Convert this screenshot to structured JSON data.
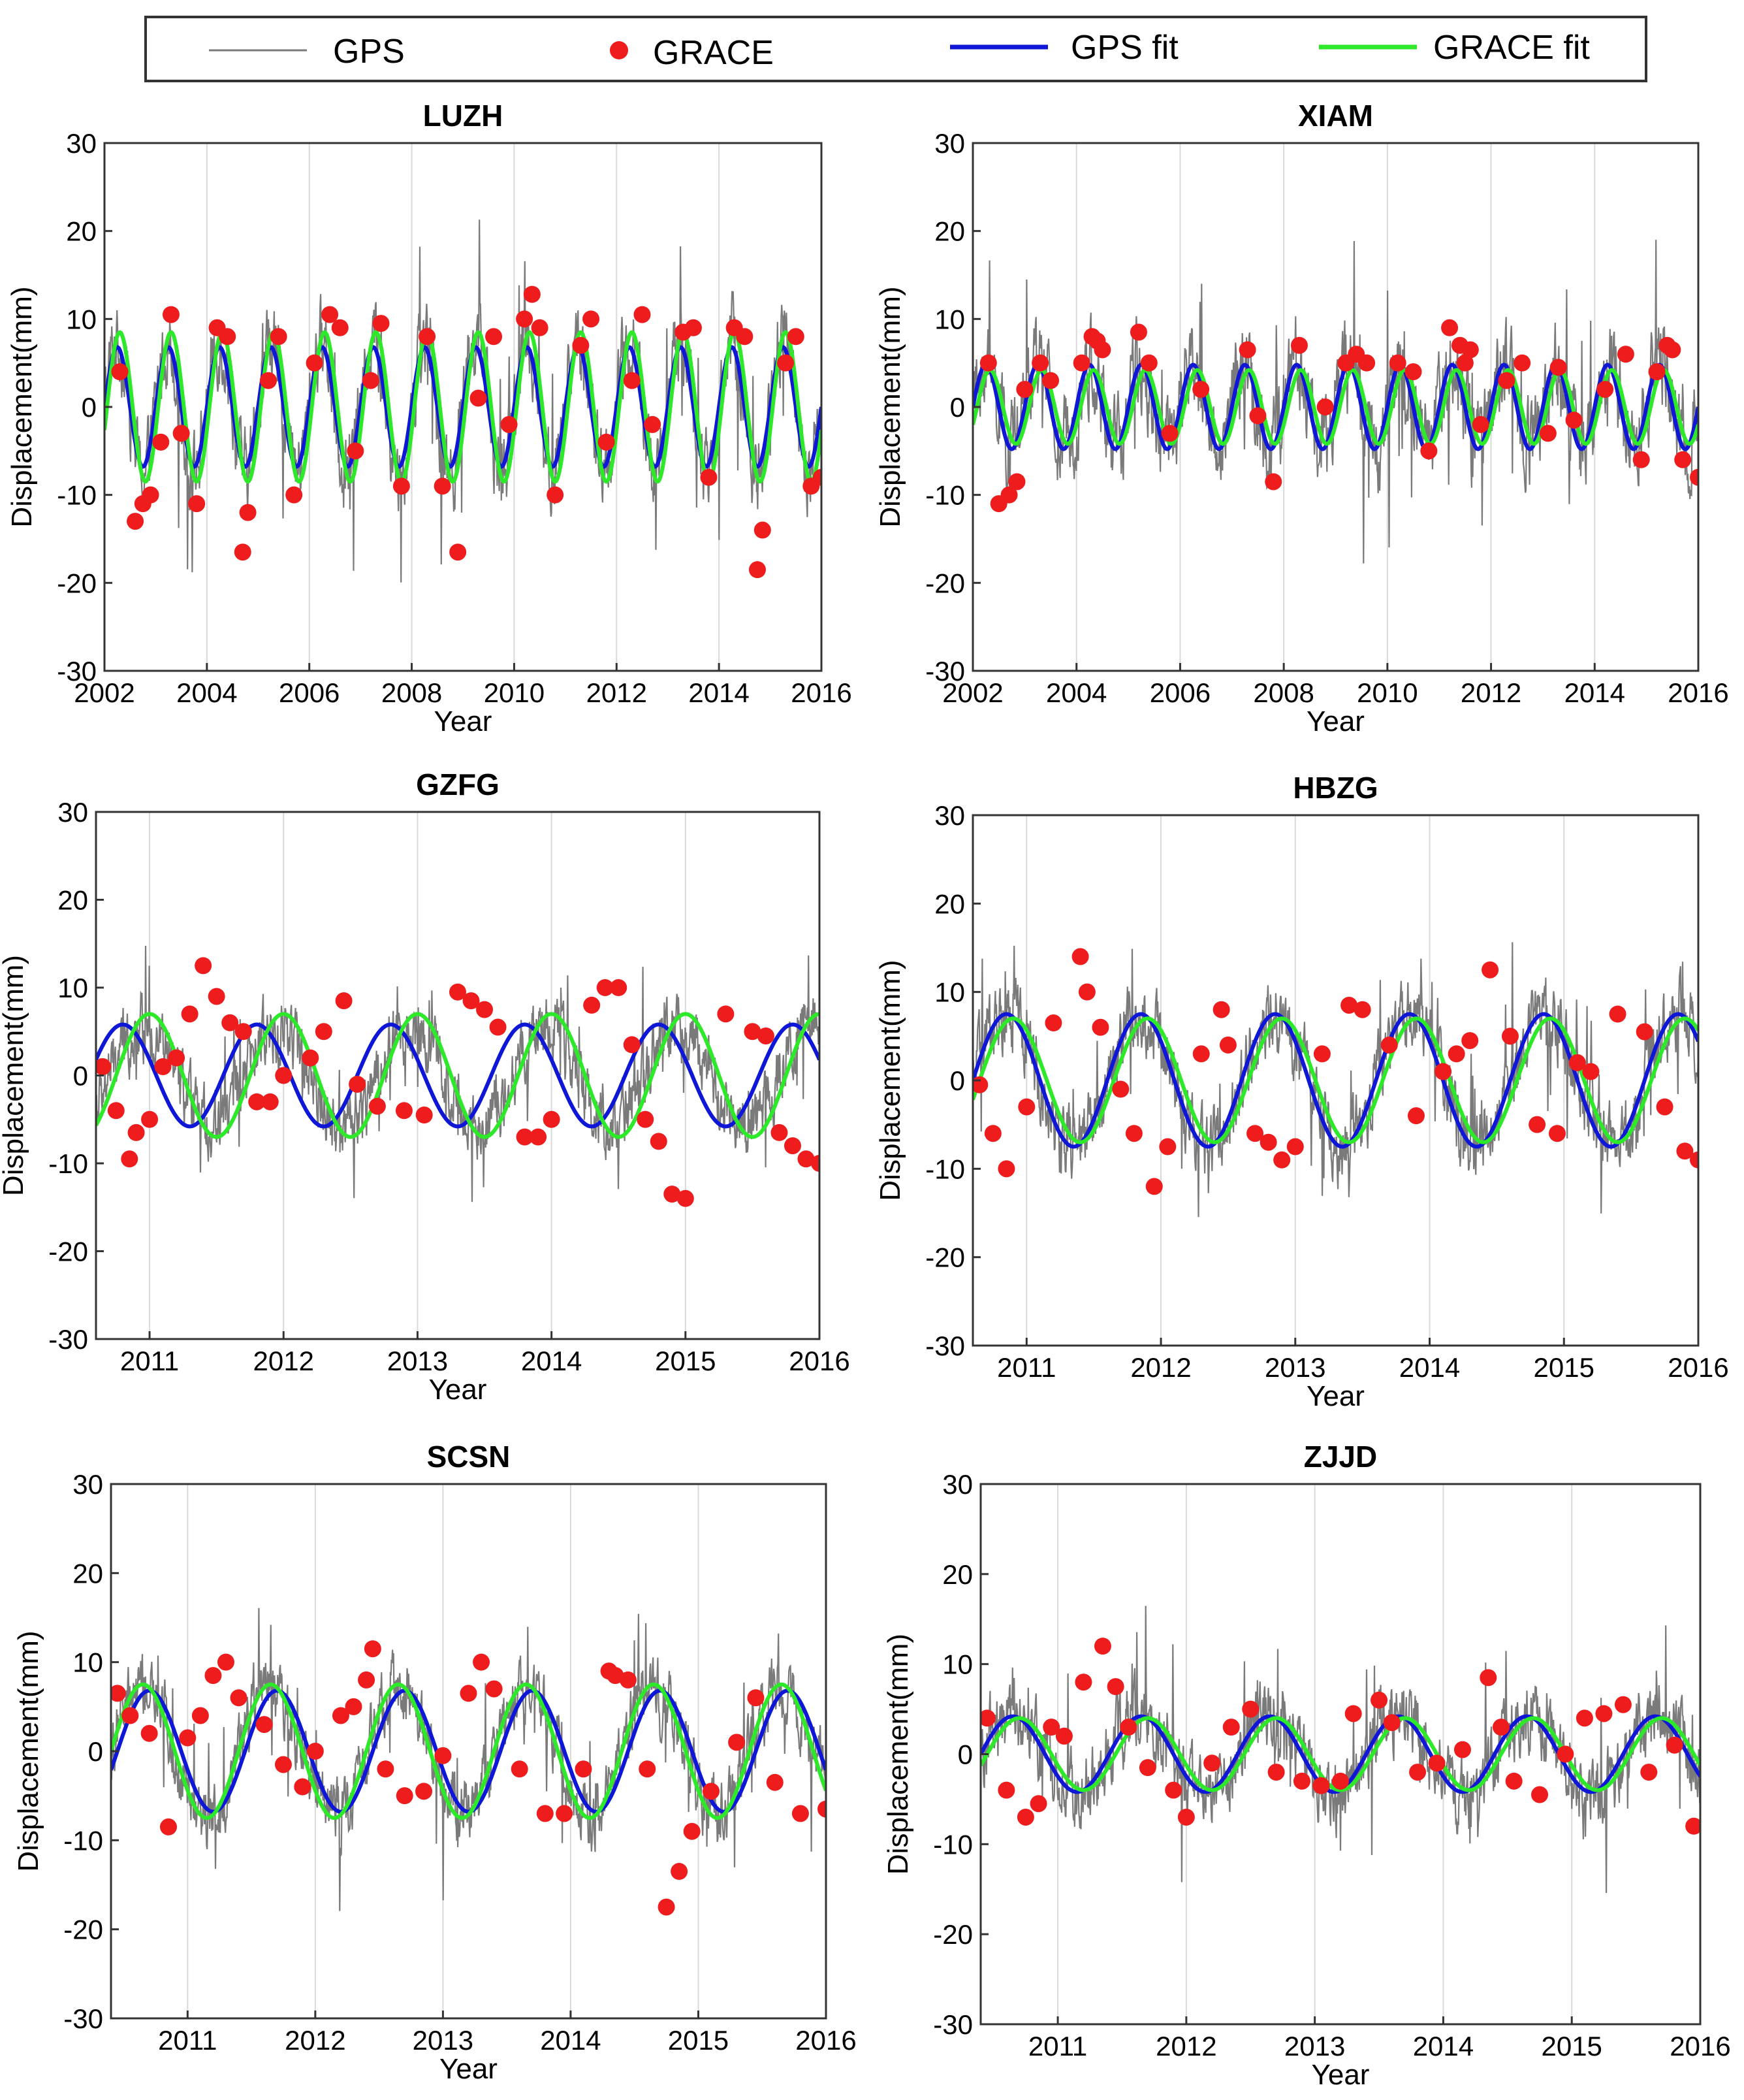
{
  "legend": {
    "items": [
      {
        "label": "GPS",
        "kind": "line",
        "color": "#7a7a7a"
      },
      {
        "label": "GRACE",
        "kind": "marker",
        "color": "#ee1c1c"
      },
      {
        "label": "GPS fit",
        "kind": "line",
        "color": "#0f17d6"
      },
      {
        "label": "GRACE fit",
        "kind": "line",
        "color": "#2ee82a"
      }
    ]
  },
  "colors": {
    "gps": "#7a7a7a",
    "grace": "#ee1c1c",
    "gps_fit": "#0f17d6",
    "grace_fit": "#2ee82a",
    "grid": "#d9d9d9",
    "axes": "#333333"
  },
  "chart_data": [
    {
      "type": "line",
      "title": "LUZH",
      "xlabel": "Year",
      "ylabel": "Displacement(mm)",
      "xlim": [
        2002,
        2016
      ],
      "ylim": [
        -30,
        30
      ],
      "xticks": [
        2002,
        2004,
        2006,
        2008,
        2010,
        2012,
        2014,
        2016
      ],
      "yticks": [
        -30,
        -20,
        -10,
        0,
        10,
        20,
        30
      ],
      "xgrid": [
        2002,
        2004,
        2006,
        2008,
        2010,
        2012,
        2014,
        2016
      ],
      "series": [
        {
          "name": "GPS",
          "kind": "noise",
          "amplitude_mm": 7.5,
          "phase_year": 0.0,
          "noise_mm": 8,
          "range_mm": [
            -29,
            27
          ]
        },
        {
          "name": "GRACE",
          "kind": "points",
          "x": [
            2002.3,
            2002.6,
            2002.75,
            2002.9,
            2003.1,
            2003.3,
            2003.5,
            2003.8,
            2004.2,
            2004.4,
            2004.7,
            2004.8,
            2005.2,
            2005.4,
            2005.7,
            2006.1,
            2006.4,
            2006.6,
            2006.9,
            2007.2,
            2007.4,
            2007.8,
            2008.3,
            2008.6,
            2008.9,
            2009.3,
            2009.6,
            2009.9,
            2010.2,
            2010.35,
            2010.5,
            2010.8,
            2011.3,
            2011.5,
            2011.8,
            2012.3,
            2012.5,
            2012.7,
            2013.3,
            2013.5,
            2013.8,
            2014.3,
            2014.5,
            2014.75,
            2014.85,
            2015.3,
            2015.5,
            2015.8,
            2016.0
          ],
          "y": [
            4,
            -13,
            -11,
            -10,
            -4,
            10.5,
            -3,
            -11,
            9,
            8,
            -16.5,
            -12,
            3,
            8,
            -10,
            5,
            10.5,
            9,
            -5,
            3,
            9.5,
            -9,
            8,
            -9,
            -16.5,
            1,
            8,
            -2,
            10,
            12.8,
            9,
            -10,
            7,
            10,
            -4,
            3,
            10.5,
            -2,
            8.5,
            9,
            -8,
            9,
            8,
            -18.5,
            -14,
            5,
            8,
            -9,
            -8
          ]
        },
        {
          "name": "GPS fit",
          "kind": "fit",
          "amplitude_mm": 6.8,
          "phase_year": 0.0
        },
        {
          "name": "GRACE fit",
          "kind": "fit",
          "amplitude_mm": 8.5,
          "phase_year": 0.05
        }
      ]
    },
    {
      "type": "line",
      "title": "XIAM",
      "xlabel": "Year",
      "ylabel": "Displacement(mm)",
      "xlim": [
        2002,
        2016
      ],
      "ylim": [
        -30,
        30
      ],
      "xticks": [
        2002,
        2004,
        2006,
        2008,
        2010,
        2012,
        2014,
        2016
      ],
      "yticks": [
        -30,
        -20,
        -10,
        0,
        10,
        20,
        30
      ],
      "xgrid": [
        2002,
        2004,
        2006,
        2008,
        2010,
        2012,
        2014,
        2016
      ],
      "series": [
        {
          "name": "GPS",
          "kind": "noise",
          "amplitude_mm": 4.5,
          "phase_year": 0.0,
          "noise_mm": 9,
          "range_mm": [
            -27,
            30
          ]
        },
        {
          "name": "GRACE",
          "kind": "points",
          "x": [
            2002.3,
            2002.5,
            2002.7,
            2002.85,
            2003.0,
            2003.3,
            2003.5,
            2004.1,
            2004.3,
            2004.4,
            2004.5,
            2005.2,
            2005.4,
            2005.8,
            2006.4,
            2007.3,
            2007.5,
            2007.8,
            2008.3,
            2008.8,
            2009.2,
            2009.4,
            2009.6,
            2010.2,
            2010.5,
            2010.8,
            2011.2,
            2011.4,
            2011.5,
            2011.6,
            2011.8,
            2012.3,
            2012.6,
            2013.1,
            2013.3,
            2013.6,
            2014.2,
            2014.6,
            2014.9,
            2015.2,
            2015.4,
            2015.5,
            2015.7,
            2016.0
          ],
          "y": [
            5,
            -11,
            -10,
            -8.5,
            2,
            5,
            3,
            5,
            8,
            7.5,
            6.5,
            8.5,
            5,
            -3,
            2,
            6.5,
            -1,
            -8.5,
            7,
            0,
            5,
            6,
            5,
            5,
            4,
            -5,
            9,
            7,
            5,
            6.5,
            -2,
            3,
            5,
            -3,
            4.5,
            -1.5,
            2,
            6,
            -6,
            4,
            7,
            6.5,
            -6,
            -8
          ]
        },
        {
          "name": "GPS fit",
          "kind": "fit",
          "amplitude_mm": 4.8,
          "phase_year": 0.0
        },
        {
          "name": "GRACE fit",
          "kind": "fit",
          "amplitude_mm": 4.2,
          "phase_year": 0.08
        }
      ]
    },
    {
      "type": "line",
      "title": "GZFG",
      "xlabel": "Year",
      "ylabel": "Displacement(mm)",
      "xlim": [
        2010.6,
        2016
      ],
      "ylim": [
        -30,
        30
      ],
      "xticks": [
        2011,
        2012,
        2013,
        2014,
        2015,
        2016
      ],
      "yticks": [
        -30,
        -20,
        -10,
        0,
        10,
        20,
        30
      ],
      "xgrid": [
        2011,
        2012,
        2013,
        2014,
        2015,
        2016
      ],
      "series": [
        {
          "name": "GPS",
          "kind": "noise",
          "amplitude_mm": 5.5,
          "phase_year": 0.1,
          "noise_mm": 6.5,
          "range_mm": [
            -24,
            30
          ]
        },
        {
          "name": "GRACE",
          "kind": "points",
          "x": [
            2010.65,
            2010.75,
            2010.85,
            2010.9,
            2011.0,
            2011.1,
            2011.2,
            2011.3,
            2011.4,
            2011.5,
            2011.6,
            2011.7,
            2011.8,
            2011.9,
            2012.0,
            2012.2,
            2012.3,
            2012.45,
            2012.55,
            2012.7,
            2012.9,
            2013.05,
            2013.3,
            2013.4,
            2013.5,
            2013.6,
            2013.8,
            2013.9,
            2014.0,
            2014.3,
            2014.4,
            2014.5,
            2014.6,
            2014.7,
            2014.8,
            2014.9,
            2015.0,
            2015.3,
            2015.5,
            2015.6,
            2015.7,
            2015.8,
            2015.9,
            2016.0
          ],
          "y": [
            1,
            -4,
            -9.5,
            -6.5,
            -5,
            1,
            2,
            7,
            12.5,
            9,
            6,
            5,
            -3,
            -3,
            0,
            2,
            5,
            8.5,
            -1,
            -3.5,
            -4,
            -4.5,
            9.5,
            8.5,
            7.5,
            5.5,
            -7,
            -7,
            -5,
            8,
            10,
            10,
            3.5,
            -5,
            -7.5,
            -13.5,
            -14,
            7,
            5,
            4.5,
            -6.5,
            -8,
            -9.5,
            -10
          ]
        },
        {
          "name": "GPS fit",
          "kind": "fit",
          "amplitude_mm": 5.8,
          "phase_year": -0.05
        },
        {
          "name": "GRACE fit",
          "kind": "fit",
          "amplitude_mm": 7.0,
          "phase_year": 0.15
        }
      ]
    },
    {
      "type": "line",
      "title": "HBZG",
      "xlabel": "Year",
      "ylabel": "Displacement(mm)",
      "xlim": [
        2010.6,
        2016
      ],
      "ylim": [
        -30,
        30
      ],
      "xticks": [
        2011,
        2012,
        2013,
        2014,
        2015,
        2016
      ],
      "yticks": [
        -30,
        -20,
        -10,
        0,
        10,
        20,
        30
      ],
      "xgrid": [
        2011,
        2012,
        2013,
        2014,
        2015,
        2016
      ],
      "series": [
        {
          "name": "GPS",
          "kind": "noise",
          "amplitude_mm": 7.5,
          "phase_year": 0.0,
          "noise_mm": 7,
          "range_mm": [
            -27.5,
            27
          ]
        },
        {
          "name": "GRACE",
          "kind": "points",
          "x": [
            2010.65,
            2010.75,
            2010.85,
            2011.0,
            2011.2,
            2011.4,
            2011.45,
            2011.55,
            2011.7,
            2011.8,
            2011.95,
            2012.05,
            2012.3,
            2012.45,
            2012.5,
            2012.7,
            2012.8,
            2012.9,
            2013.0,
            2013.2,
            2013.4,
            2013.5,
            2013.7,
            2013.9,
            2014.1,
            2014.2,
            2014.3,
            2014.45,
            2014.6,
            2014.8,
            2014.95,
            2015.1,
            2015.2,
            2015.4,
            2015.6,
            2015.75,
            2015.9,
            2016.0
          ],
          "y": [
            -0.5,
            -6,
            -10,
            -3,
            6.5,
            14,
            10,
            6,
            -1,
            -6,
            -12,
            -7.5,
            3,
            8,
            4,
            -6,
            -7,
            -9,
            -7.5,
            3,
            8.5,
            8,
            4,
            -4,
            1,
            3,
            4.5,
            12.5,
            5,
            -5,
            -6,
            2,
            1,
            7.5,
            5.5,
            -3,
            -8,
            -9
          ]
        },
        {
          "name": "GPS fit",
          "kind": "fit",
          "amplitude_mm": 7.5,
          "phase_year": 0.0
        },
        {
          "name": "GRACE fit",
          "kind": "fit",
          "amplitude_mm": 7.0,
          "phase_year": 0.05
        }
      ]
    },
    {
      "type": "line",
      "title": "SCSN",
      "xlabel": "Year",
      "ylabel": "Displacement(mm)",
      "xlim": [
        2010.4,
        2016
      ],
      "ylim": [
        -30,
        30
      ],
      "xticks": [
        2011,
        2012,
        2013,
        2014,
        2015,
        2016
      ],
      "yticks": [
        -30,
        -20,
        -10,
        0,
        10,
        20,
        30
      ],
      "xgrid": [
        2011,
        2012,
        2013,
        2014,
        2015,
        2016
      ],
      "series": [
        {
          "name": "GPS",
          "kind": "noise",
          "amplitude_mm": 7.0,
          "phase_year": 0.0,
          "noise_mm": 6.5,
          "range_mm": [
            -20,
            21
          ]
        },
        {
          "name": "GRACE",
          "kind": "points",
          "x": [
            2010.45,
            2010.55,
            2010.7,
            2010.85,
            2011.0,
            2011.1,
            2011.2,
            2011.3,
            2011.4,
            2011.6,
            2011.75,
            2011.9,
            2012.0,
            2012.2,
            2012.3,
            2012.4,
            2012.45,
            2012.55,
            2012.7,
            2012.85,
            2013.0,
            2013.2,
            2013.3,
            2013.4,
            2013.6,
            2013.8,
            2013.95,
            2014.1,
            2014.3,
            2014.35,
            2014.45,
            2014.6,
            2014.75,
            2014.85,
            2014.95,
            2015.1,
            2015.3,
            2015.45,
            2015.6,
            2015.8,
            2016.0
          ],
          "y": [
            6.5,
            4,
            2,
            -8.5,
            1.5,
            4,
            8.5,
            10,
            6,
            3,
            -1.5,
            -4,
            0,
            4,
            5,
            8,
            11.5,
            -2,
            -5,
            -4.5,
            -0.5,
            6.5,
            10,
            7,
            -2,
            -7,
            -7,
            -2,
            9,
            8.5,
            8,
            -2,
            -17.5,
            -13.5,
            -9,
            -4.5,
            1,
            6,
            -3.5,
            -7,
            -6.5
          ]
        },
        {
          "name": "GPS fit",
          "kind": "fit",
          "amplitude_mm": 6.8,
          "phase_year": 0.05
        },
        {
          "name": "GRACE fit",
          "kind": "fit",
          "amplitude_mm": 7.5,
          "phase_year": 0.0
        }
      ]
    },
    {
      "type": "line",
      "title": "ZJJD",
      "xlabel": "Year",
      "ylabel": "Displacement(mm)",
      "xlim": [
        2010.4,
        2016
      ],
      "ylim": [
        -30,
        30
      ],
      "xticks": [
        2011,
        2012,
        2013,
        2014,
        2015,
        2016
      ],
      "yticks": [
        -30,
        -20,
        -10,
        0,
        10,
        20,
        30
      ],
      "xgrid": [
        2011,
        2012,
        2013,
        2014,
        2015,
        2016
      ],
      "series": [
        {
          "name": "GPS",
          "kind": "noise",
          "amplitude_mm": 4.5,
          "phase_year": 0.0,
          "noise_mm": 7,
          "range_mm": [
            -24,
            27
          ]
        },
        {
          "name": "GRACE",
          "kind": "points",
          "x": [
            2010.45,
            2010.6,
            2010.75,
            2010.85,
            2010.95,
            2011.05,
            2011.2,
            2011.35,
            2011.45,
            2011.55,
            2011.7,
            2011.9,
            2012.0,
            2012.2,
            2012.35,
            2012.5,
            2012.7,
            2012.9,
            2013.05,
            2013.2,
            2013.3,
            2013.5,
            2013.6,
            2013.8,
            2013.95,
            2014.15,
            2014.35,
            2014.45,
            2014.55,
            2014.75,
            2014.95,
            2015.1,
            2015.25,
            2015.4,
            2015.6,
            2015.8,
            2015.95
          ],
          "y": [
            4,
            -4,
            -7,
            -5.5,
            3,
            2,
            8,
            12,
            7.5,
            3,
            -1.5,
            -4,
            -7,
            -1,
            3,
            5,
            -2,
            -3,
            -3.5,
            -3,
            4.5,
            6,
            3.5,
            -2,
            -1,
            0.5,
            8.5,
            3,
            -3,
            -4.5,
            0,
            4,
            4.5,
            5.5,
            -2,
            1,
            -8
          ]
        },
        {
          "name": "GPS fit",
          "kind": "fit",
          "amplitude_mm": 4.2,
          "phase_year": 0.0
        },
        {
          "name": "GRACE fit",
          "kind": "fit",
          "amplitude_mm": 4.0,
          "phase_year": 0.05
        }
      ]
    }
  ]
}
